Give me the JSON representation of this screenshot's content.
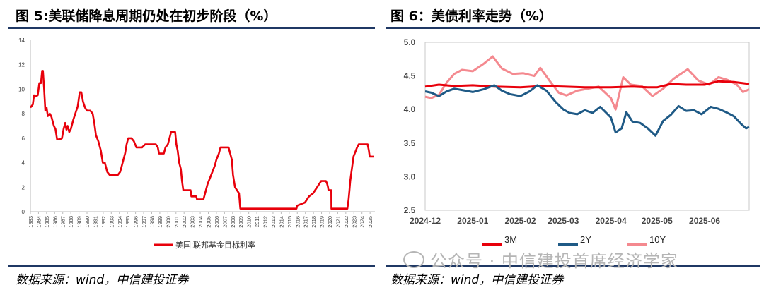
{
  "left": {
    "title": "图 5:美联储降息周期仍处在初步阶段（%）",
    "source": "数据来源：wind，中信建投证券"
  },
  "right": {
    "title": "图 6：美债利率走势（%）",
    "source": "数据来源：wind，中信建投证券"
  },
  "watermark": "公众号 · 中信建投首席经济学家",
  "chart_data": [
    {
      "type": "line",
      "title": "图 5:美联储降息周期仍处在初步阶段（%）",
      "x_ticks": [
        "1983",
        "1984",
        "1985",
        "1986",
        "1987",
        "1988",
        "1989",
        "1990",
        "1991",
        "1992",
        "1993",
        "1994",
        "1995",
        "1996",
        "1997",
        "1998",
        "1999",
        "2000",
        "2001",
        "2002",
        "2003",
        "2004",
        "2005",
        "2006",
        "2007",
        "2008",
        "2009",
        "2010",
        "2011",
        "2012",
        "2013",
        "2014",
        "2015",
        "2016",
        "2017",
        "2018",
        "2019",
        "2020",
        "2021",
        "2022",
        "2023",
        "2024",
        "2025"
      ],
      "xlim": [
        1983,
        2025.6
      ],
      "ylim": [
        0,
        14
      ],
      "y_ticks": [
        0,
        2,
        4,
        6,
        8,
        10,
        12,
        14
      ],
      "legend_position": "bottom",
      "series": [
        {
          "name": "美国:联邦基金目标利率",
          "color": "#e8000b",
          "points": [
            [
              1983.0,
              8.5
            ],
            [
              1983.3,
              8.75
            ],
            [
              1983.45,
              9.5
            ],
            [
              1983.6,
              9.4
            ],
            [
              1983.9,
              9.5
            ],
            [
              1984.1,
              10.5
            ],
            [
              1984.3,
              10.5
            ],
            [
              1984.45,
              11.5
            ],
            [
              1984.55,
              11.5
            ],
            [
              1984.7,
              10.0
            ],
            [
              1984.85,
              8.25
            ],
            [
              1985.0,
              8.5
            ],
            [
              1985.15,
              7.8
            ],
            [
              1985.4,
              8.0
            ],
            [
              1985.6,
              7.75
            ],
            [
              1985.9,
              7.0
            ],
            [
              1986.1,
              6.75
            ],
            [
              1986.3,
              5.9
            ],
            [
              1986.6,
              5.9
            ],
            [
              1986.9,
              6.0
            ],
            [
              1987.1,
              6.75
            ],
            [
              1987.3,
              7.25
            ],
            [
              1987.45,
              6.7
            ],
            [
              1987.6,
              7.0
            ],
            [
              1987.8,
              6.5
            ],
            [
              1988.0,
              6.75
            ],
            [
              1988.3,
              7.5
            ],
            [
              1988.6,
              8.1
            ],
            [
              1988.85,
              8.6
            ],
            [
              1989.1,
              9.75
            ],
            [
              1989.3,
              9.75
            ],
            [
              1989.5,
              9.0
            ],
            [
              1989.75,
              8.5
            ],
            [
              1990.0,
              8.25
            ],
            [
              1990.4,
              8.25
            ],
            [
              1990.7,
              8.0
            ],
            [
              1990.9,
              7.25
            ],
            [
              1991.1,
              6.25
            ],
            [
              1991.4,
              5.75
            ],
            [
              1991.7,
              5.0
            ],
            [
              1991.95,
              4.0
            ],
            [
              1992.2,
              4.0
            ],
            [
              1992.5,
              3.25
            ],
            [
              1992.8,
              3.0
            ],
            [
              1993.3,
              3.0
            ],
            [
              1993.8,
              3.0
            ],
            [
              1994.1,
              3.25
            ],
            [
              1994.3,
              3.75
            ],
            [
              1994.5,
              4.25
            ],
            [
              1994.7,
              4.75
            ],
            [
              1994.9,
              5.5
            ],
            [
              1995.1,
              6.0
            ],
            [
              1995.5,
              6.0
            ],
            [
              1995.8,
              5.75
            ],
            [
              1996.1,
              5.25
            ],
            [
              1996.8,
              5.25
            ],
            [
              1997.2,
              5.5
            ],
            [
              1998.5,
              5.5
            ],
            [
              1998.75,
              5.25
            ],
            [
              1998.9,
              4.75
            ],
            [
              1999.5,
              4.75
            ],
            [
              1999.7,
              5.25
            ],
            [
              2000.0,
              5.5
            ],
            [
              2000.2,
              6.0
            ],
            [
              2000.4,
              6.5
            ],
            [
              2000.9,
              6.5
            ],
            [
              2001.05,
              5.5
            ],
            [
              2001.2,
              5.0
            ],
            [
              2001.4,
              4.0
            ],
            [
              2001.6,
              3.5
            ],
            [
              2001.75,
              2.5
            ],
            [
              2001.9,
              1.75
            ],
            [
              2002.8,
              1.75
            ],
            [
              2002.9,
              1.25
            ],
            [
              2003.5,
              1.25
            ],
            [
              2003.6,
              1.0
            ],
            [
              2004.4,
              1.0
            ],
            [
              2004.6,
              1.5
            ],
            [
              2004.9,
              2.25
            ],
            [
              2005.2,
              2.75
            ],
            [
              2005.5,
              3.25
            ],
            [
              2005.8,
              3.75
            ],
            [
              2006.0,
              4.25
            ],
            [
              2006.3,
              4.75
            ],
            [
              2006.5,
              5.25
            ],
            [
              2007.5,
              5.25
            ],
            [
              2007.7,
              4.75
            ],
            [
              2007.9,
              4.25
            ],
            [
              2008.05,
              3.0
            ],
            [
              2008.3,
              2.0
            ],
            [
              2008.8,
              1.5
            ],
            [
              2008.95,
              0.25
            ],
            [
              2015.9,
              0.25
            ],
            [
              2016.0,
              0.5
            ],
            [
              2016.95,
              0.75
            ],
            [
              2017.2,
              1.0
            ],
            [
              2017.45,
              1.25
            ],
            [
              2017.95,
              1.5
            ],
            [
              2018.2,
              1.75
            ],
            [
              2018.45,
              2.0
            ],
            [
              2018.7,
              2.25
            ],
            [
              2018.95,
              2.5
            ],
            [
              2019.55,
              2.5
            ],
            [
              2019.7,
              2.25
            ],
            [
              2019.8,
              2.0
            ],
            [
              2019.85,
              1.75
            ],
            [
              2020.2,
              1.75
            ],
            [
              2020.22,
              0.25
            ],
            [
              2022.2,
              0.25
            ],
            [
              2022.35,
              1.0
            ],
            [
              2022.45,
              1.75
            ],
            [
              2022.55,
              2.5
            ],
            [
              2022.7,
              3.25
            ],
            [
              2022.85,
              4.0
            ],
            [
              2022.95,
              4.5
            ],
            [
              2023.1,
              4.75
            ],
            [
              2023.25,
              5.0
            ],
            [
              2023.4,
              5.25
            ],
            [
              2023.6,
              5.5
            ],
            [
              2024.7,
              5.5
            ],
            [
              2024.85,
              5.0
            ],
            [
              2024.95,
              4.5
            ],
            [
              2025.5,
              4.5
            ]
          ]
        }
      ]
    },
    {
      "type": "line",
      "title": "图 6：美债利率走势（%）",
      "x_ticks": [
        "2024-12",
        "2025-01",
        "2025-02",
        "2025-03",
        "2025-04",
        "2025-05",
        "2025-06"
      ],
      "xlim": [
        "2024-12-01",
        "2025-06-30"
      ],
      "ylim": [
        2.5,
        5.0
      ],
      "y_ticks": [
        "2.5",
        "3.0",
        "3.5",
        "4.0",
        "4.5",
        "5.0"
      ],
      "legend_position": "bottom",
      "series": [
        {
          "name": "3M",
          "color": "#e8000b",
          "points": [
            [
              "2024-12-01",
              4.34
            ],
            [
              "2024-12-10",
              4.37
            ],
            [
              "2024-12-20",
              4.35
            ],
            [
              "2025-01-01",
              4.36
            ],
            [
              "2025-01-15",
              4.34
            ],
            [
              "2025-02-01",
              4.33
            ],
            [
              "2025-02-15",
              4.35
            ],
            [
              "2025-03-01",
              4.34
            ],
            [
              "2025-03-15",
              4.33
            ],
            [
              "2025-04-01",
              4.33
            ],
            [
              "2025-04-15",
              4.34
            ],
            [
              "2025-04-25",
              4.33
            ],
            [
              "2025-05-01",
              4.33
            ],
            [
              "2025-05-10",
              4.38
            ],
            [
              "2025-05-20",
              4.37
            ],
            [
              "2025-06-01",
              4.37
            ],
            [
              "2025-06-10",
              4.42
            ],
            [
              "2025-06-20",
              4.41
            ],
            [
              "2025-06-30",
              4.38
            ]
          ]
        },
        {
          "name": "2Y",
          "color": "#1f5a86",
          "points": [
            [
              "2024-12-01",
              4.27
            ],
            [
              "2024-12-05",
              4.25
            ],
            [
              "2024-12-10",
              4.2
            ],
            [
              "2024-12-15",
              4.27
            ],
            [
              "2024-12-20",
              4.31
            ],
            [
              "2024-12-25",
              4.29
            ],
            [
              "2025-01-01",
              4.26
            ],
            [
              "2025-01-08",
              4.3
            ],
            [
              "2025-01-15",
              4.36
            ],
            [
              "2025-01-20",
              4.28
            ],
            [
              "2025-01-25",
              4.23
            ],
            [
              "2025-02-01",
              4.2
            ],
            [
              "2025-02-07",
              4.27
            ],
            [
              "2025-02-12",
              4.36
            ],
            [
              "2025-02-18",
              4.28
            ],
            [
              "2025-02-24",
              4.11
            ],
            [
              "2025-03-01",
              4.0
            ],
            [
              "2025-03-05",
              3.95
            ],
            [
              "2025-03-10",
              3.93
            ],
            [
              "2025-03-15",
              3.99
            ],
            [
              "2025-03-20",
              3.95
            ],
            [
              "2025-03-25",
              4.04
            ],
            [
              "2025-04-01",
              3.88
            ],
            [
              "2025-04-04",
              3.66
            ],
            [
              "2025-04-08",
              3.72
            ],
            [
              "2025-04-11",
              3.96
            ],
            [
              "2025-04-15",
              3.82
            ],
            [
              "2025-04-20",
              3.8
            ],
            [
              "2025-04-25",
              3.72
            ],
            [
              "2025-04-30",
              3.61
            ],
            [
              "2025-05-05",
              3.83
            ],
            [
              "2025-05-10",
              3.92
            ],
            [
              "2025-05-15",
              4.05
            ],
            [
              "2025-05-20",
              3.98
            ],
            [
              "2025-05-25",
              3.99
            ],
            [
              "2025-05-30",
              3.93
            ],
            [
              "2025-06-05",
              4.04
            ],
            [
              "2025-06-10",
              4.01
            ],
            [
              "2025-06-15",
              3.96
            ],
            [
              "2025-06-20",
              3.9
            ],
            [
              "2025-06-25",
              3.78
            ],
            [
              "2025-06-28",
              3.72
            ],
            [
              "2025-06-30",
              3.74
            ]
          ]
        },
        {
          "name": "10Y",
          "color": "#f4898f",
          "points": [
            [
              "2024-12-01",
              4.19
            ],
            [
              "2024-12-05",
              4.17
            ],
            [
              "2024-12-10",
              4.22
            ],
            [
              "2024-12-15",
              4.4
            ],
            [
              "2024-12-20",
              4.53
            ],
            [
              "2024-12-25",
              4.59
            ],
            [
              "2025-01-01",
              4.57
            ],
            [
              "2025-01-08",
              4.68
            ],
            [
              "2025-01-14",
              4.79
            ],
            [
              "2025-01-20",
              4.61
            ],
            [
              "2025-01-27",
              4.53
            ],
            [
              "2025-02-03",
              4.54
            ],
            [
              "2025-02-10",
              4.5
            ],
            [
              "2025-02-14",
              4.62
            ],
            [
              "2025-02-20",
              4.43
            ],
            [
              "2025-02-26",
              4.25
            ],
            [
              "2025-03-03",
              4.21
            ],
            [
              "2025-03-10",
              4.28
            ],
            [
              "2025-03-17",
              4.31
            ],
            [
              "2025-03-24",
              4.34
            ],
            [
              "2025-04-01",
              4.17
            ],
            [
              "2025-04-04",
              4.0
            ],
            [
              "2025-04-09",
              4.48
            ],
            [
              "2025-04-14",
              4.37
            ],
            [
              "2025-04-21",
              4.35
            ],
            [
              "2025-04-28",
              4.2
            ],
            [
              "2025-05-05",
              4.31
            ],
            [
              "2025-05-12",
              4.46
            ],
            [
              "2025-05-21",
              4.6
            ],
            [
              "2025-05-28",
              4.43
            ],
            [
              "2025-06-04",
              4.37
            ],
            [
              "2025-06-10",
              4.48
            ],
            [
              "2025-06-16",
              4.44
            ],
            [
              "2025-06-22",
              4.37
            ],
            [
              "2025-06-26",
              4.26
            ],
            [
              "2025-06-30",
              4.3
            ]
          ]
        }
      ]
    }
  ]
}
